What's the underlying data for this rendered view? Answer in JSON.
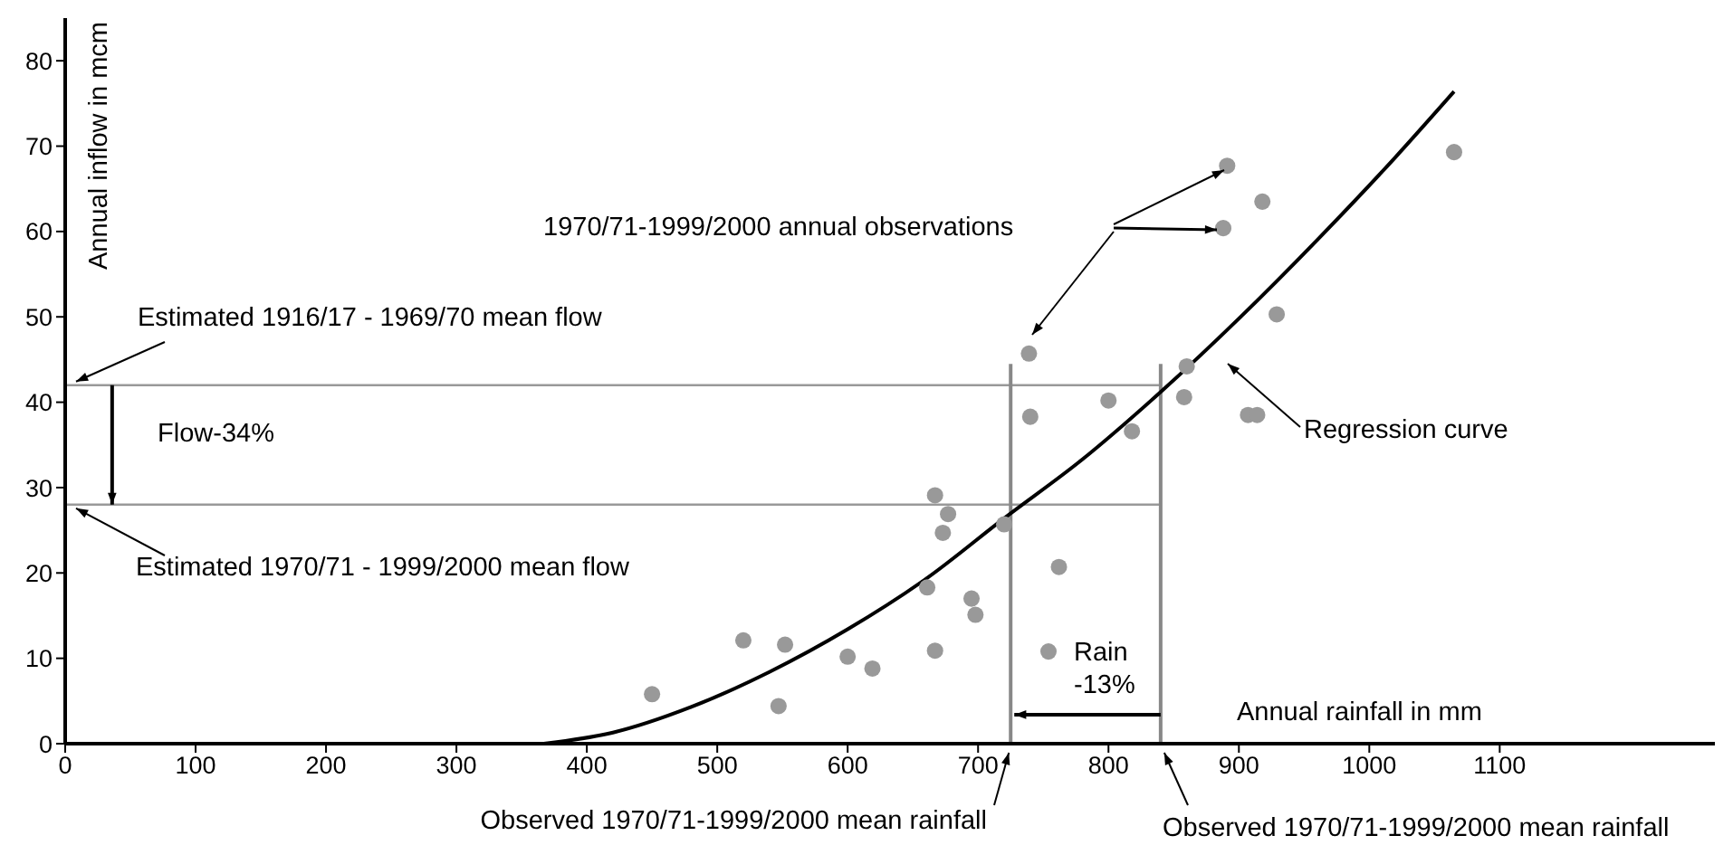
{
  "chart_data": {
    "type": "scatter",
    "xlabel": "Annual rainfall in mm",
    "ylabel": "Annual inflow in mcm",
    "xlim": [
      0,
      1265
    ],
    "ylim": [
      0,
      85
    ],
    "xticks": [
      0,
      100,
      200,
      300,
      400,
      500,
      600,
      700,
      800,
      900,
      1000,
      1100
    ],
    "yticks": [
      0,
      10,
      20,
      30,
      40,
      50,
      60,
      70,
      80
    ],
    "series": [
      {
        "color": "#999999",
        "marker": "circle",
        "x": [
          450,
          520,
          552,
          547,
          600,
          619,
          661,
          667,
          667,
          677,
          673,
          695,
          698,
          720,
          762,
          754,
          739,
          740,
          800,
          818,
          860,
          858,
          891,
          888,
          918,
          929,
          907,
          914,
          1065
        ],
        "values": [
          5.8,
          12.1,
          11.6,
          4.4,
          10.2,
          8.8,
          18.3,
          10.9,
          29.1,
          26.9,
          24.7,
          17.0,
          15.1,
          25.7,
          20.7,
          10.8,
          45.7,
          38.3,
          40.2,
          36.6,
          44.2,
          40.6,
          67.7,
          60.4,
          63.5,
          50.3,
          38.5,
          38.5,
          69.3
        ]
      },
      {
        "type": "line",
        "color": "#000000",
        "marker": "none",
        "x": [
          367,
          420,
          480,
          540,
          600,
          660,
          720,
          780,
          840,
          900,
          960,
          1020,
          1065
        ],
        "values": [
          0,
          1.3,
          4.3,
          8.4,
          13.4,
          19.3,
          26.4,
          33.3,
          41.2,
          49.8,
          59.0,
          68.7,
          76.4
        ]
      }
    ],
    "ref_lines": [
      {
        "axis": "y",
        "value": 42,
        "label": "Estimated 1916/17 - 1969/70 mean flow",
        "color": "#999999"
      },
      {
        "axis": "y",
        "value": 28,
        "label": "Estimated 1970/71 - 1999/2000 mean flow",
        "color": "#999999"
      },
      {
        "axis": "x",
        "value": 725,
        "label": "Observed 1970/71-1999/2000 mean rainfall",
        "color": "#888888"
      },
      {
        "axis": "x",
        "value": 840,
        "label": "Observed 1970/71-1999/2000 mean rainfall",
        "color": "#888888"
      }
    ],
    "annotations": [
      "1970/71-1999/2000 annual observations",
      "Regression curve",
      {
        "text": "Flow-34%",
        "x": 36,
        "y": 28
      },
      {
        "text": "Rain -13%",
        "x": 725,
        "y": 3.4
      }
    ]
  }
}
